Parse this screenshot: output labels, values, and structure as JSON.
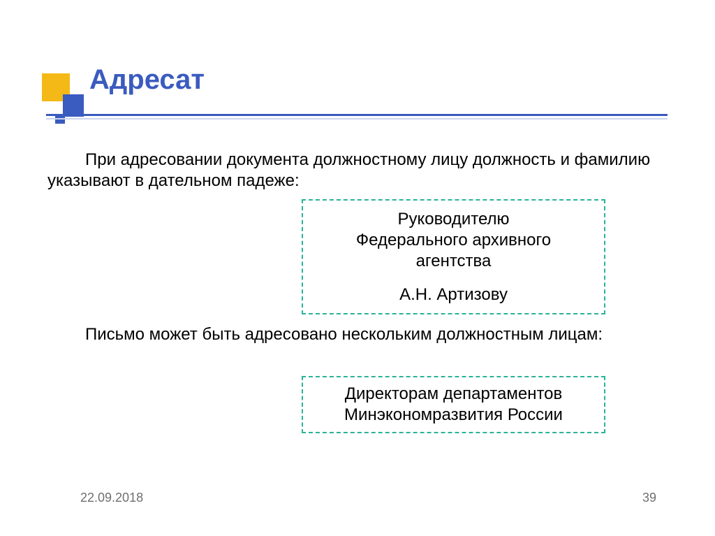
{
  "title": "Адресат",
  "paragraph1": "При  адресовании документа должностному лицу  должность и фамилию  указывают в дательном падеже:",
  "paragraph2": "Письмо может быть адресовано нескольким должностным лицам:",
  "box1": {
    "line1": "Руководителю",
    "line2": "Федерального архивного",
    "line3": "агентства",
    "line4": "А.Н. Артизову"
  },
  "box2": {
    "line1": "Директорам  департаментов",
    "line2": "Минэкономразвития России"
  },
  "footer": {
    "date": "22.09.2018",
    "page": "39"
  },
  "style": {
    "background_color": "#ffffff",
    "title_color": "#3a5bbf",
    "title_fontsize": 40,
    "body_fontsize": 24,
    "body_color": "#000000",
    "box_border_color": "#2bb29a",
    "box_border_style": "dashed",
    "footer_color": "#6f6f6f",
    "footer_fontsize": 18,
    "rule_primary_color": "#3a5bbf",
    "rule_secondary_color": "#ccd5eb",
    "logo_yellow": "#f4b917",
    "logo_blue": "#3a5bbf"
  }
}
